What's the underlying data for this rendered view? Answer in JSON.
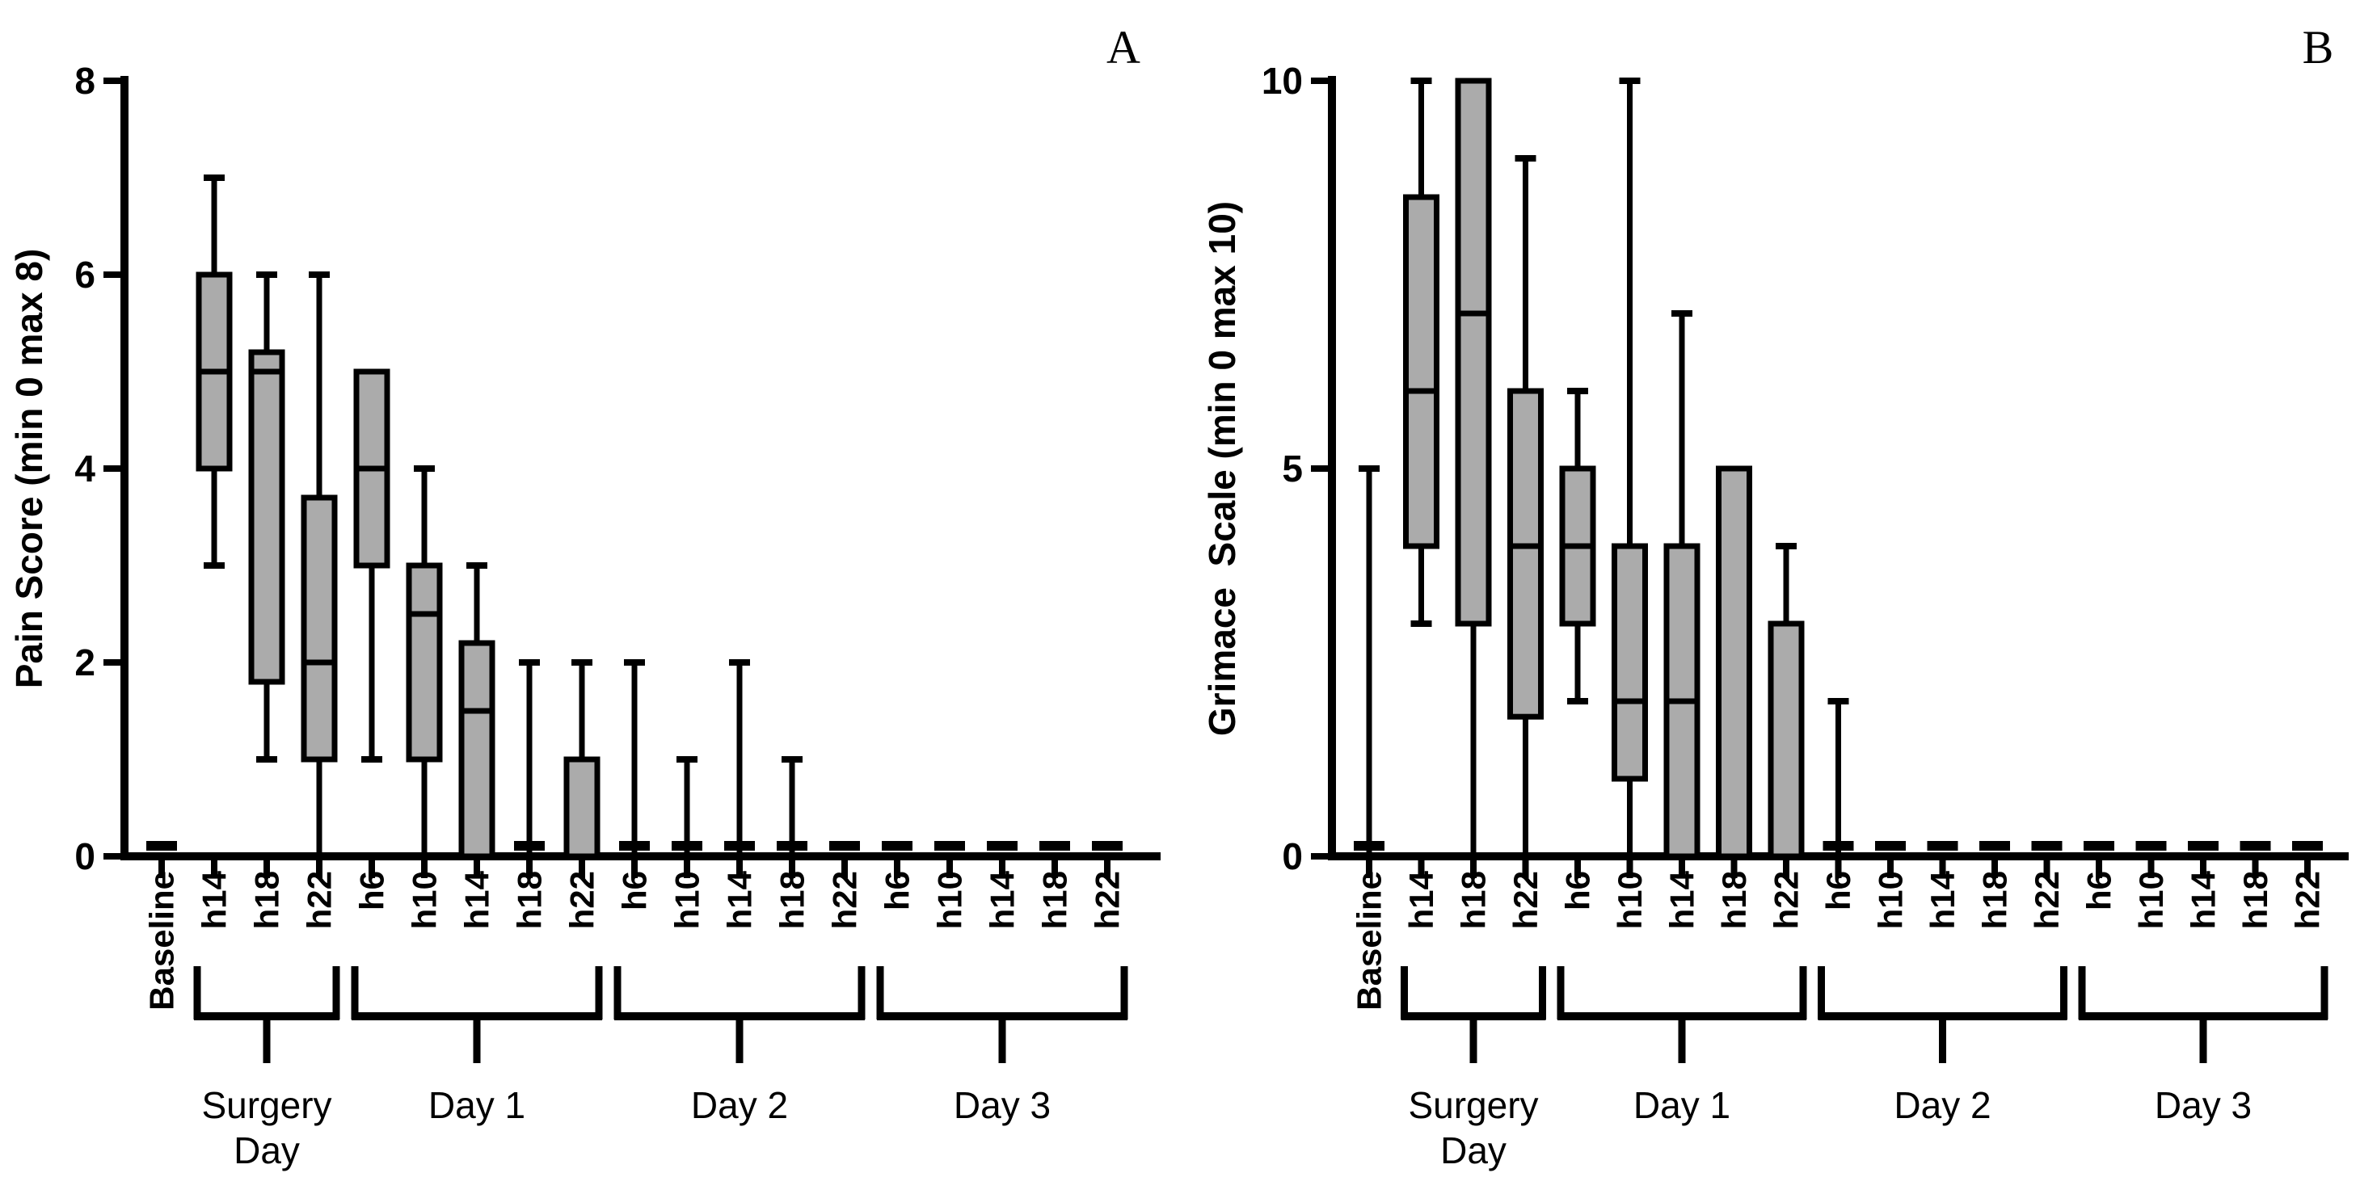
{
  "figure": {
    "background": "#ffffff",
    "line_color": "#000000",
    "box_fill": "#ababab"
  },
  "chart_data": [
    {
      "type": "box",
      "panel_letter": "A",
      "ylabel": "Pain Score (min 0 max 8)",
      "ylim": [
        0,
        8
      ],
      "yticks": [
        0,
        2,
        4,
        6,
        8
      ],
      "grid": false,
      "categories": [
        "Baseline",
        "h14",
        "h18",
        "h22",
        "h6",
        "h10",
        "h14",
        "h18",
        "h22",
        "h6",
        "h10",
        "h14",
        "h18",
        "h22",
        "h6",
        "h10",
        "h14",
        "h18",
        "h22"
      ],
      "groups": [
        {
          "label": "Surgery\nDay",
          "start": 1,
          "end": 3
        },
        {
          "label": "Day 1",
          "start": 4,
          "end": 8
        },
        {
          "label": "Day 2",
          "start": 9,
          "end": 13
        },
        {
          "label": "Day 3",
          "start": 14,
          "end": 18
        }
      ],
      "boxes": [
        {
          "lo": 0,
          "q1": 0,
          "med": 0,
          "q3": 0,
          "hi": 0
        },
        {
          "lo": 3,
          "q1": 4,
          "med": 5,
          "q3": 6,
          "hi": 7
        },
        {
          "lo": 1,
          "q1": 1.8,
          "med": 5,
          "q3": 5.2,
          "hi": 6
        },
        {
          "lo": 0,
          "q1": 1,
          "med": 2,
          "q3": 3.7,
          "hi": 6
        },
        {
          "lo": 1,
          "q1": 3,
          "med": 4,
          "q3": 5,
          "hi": 5
        },
        {
          "lo": 0,
          "q1": 1,
          "med": 2.5,
          "q3": 3,
          "hi": 4
        },
        {
          "lo": 0,
          "q1": 0,
          "med": 1.5,
          "q3": 2.2,
          "hi": 3
        },
        {
          "lo": 0,
          "q1": 0,
          "med": 0,
          "q3": 0,
          "hi": 2
        },
        {
          "lo": 0,
          "q1": 0,
          "med": 0,
          "q3": 1,
          "hi": 2
        },
        {
          "lo": 0,
          "q1": 0,
          "med": 0,
          "q3": 0,
          "hi": 2
        },
        {
          "lo": 0,
          "q1": 0,
          "med": 0,
          "q3": 0,
          "hi": 1
        },
        {
          "lo": 0,
          "q1": 0,
          "med": 0,
          "q3": 0,
          "hi": 2
        },
        {
          "lo": 0,
          "q1": 0,
          "med": 0,
          "q3": 0,
          "hi": 1
        },
        {
          "lo": 0,
          "q1": 0,
          "med": 0,
          "q3": 0,
          "hi": 0
        },
        {
          "lo": 0,
          "q1": 0,
          "med": 0,
          "q3": 0,
          "hi": 0
        },
        {
          "lo": 0,
          "q1": 0,
          "med": 0,
          "q3": 0,
          "hi": 0
        },
        {
          "lo": 0,
          "q1": 0,
          "med": 0,
          "q3": 0,
          "hi": 0
        },
        {
          "lo": 0,
          "q1": 0,
          "med": 0,
          "q3": 0,
          "hi": 0
        },
        {
          "lo": 0,
          "q1": 0,
          "med": 0,
          "q3": 0,
          "hi": 0
        }
      ]
    },
    {
      "type": "box",
      "panel_letter": "B",
      "ylabel": "Grimace  Scale (min 0 max 10)",
      "ylim": [
        0,
        10
      ],
      "yticks": [
        0,
        5,
        10
      ],
      "grid": false,
      "categories": [
        "Baseline",
        "h14",
        "h18",
        "h22",
        "h6",
        "h10",
        "h14",
        "h18",
        "h22",
        "h6",
        "h10",
        "h14",
        "h18",
        "h22",
        "h6",
        "h10",
        "h14",
        "h18",
        "h22"
      ],
      "groups": [
        {
          "label": "Surgery\nDay",
          "start": 1,
          "end": 3
        },
        {
          "label": "Day 1",
          "start": 4,
          "end": 8
        },
        {
          "label": "Day 2",
          "start": 9,
          "end": 13
        },
        {
          "label": "Day 3",
          "start": 14,
          "end": 18
        }
      ],
      "boxes": [
        {
          "lo": 0,
          "q1": 0,
          "med": 0,
          "q3": 0,
          "hi": 5
        },
        {
          "lo": 3,
          "q1": 4,
          "med": 6,
          "q3": 8.5,
          "hi": 10
        },
        {
          "lo": 0,
          "q1": 3,
          "med": 7,
          "q3": 10,
          "hi": 10
        },
        {
          "lo": 0,
          "q1": 1.8,
          "med": 4,
          "q3": 6,
          "hi": 9
        },
        {
          "lo": 2,
          "q1": 3,
          "med": 4,
          "q3": 5,
          "hi": 6
        },
        {
          "lo": 0,
          "q1": 1,
          "med": 2,
          "q3": 4,
          "hi": 10
        },
        {
          "lo": 0,
          "q1": 0,
          "med": 2,
          "q3": 4,
          "hi": 7
        },
        {
          "lo": 0,
          "q1": 0,
          "med": 0,
          "q3": 5,
          "hi": 5
        },
        {
          "lo": 0,
          "q1": 0,
          "med": 0,
          "q3": 3,
          "hi": 4
        },
        {
          "lo": 0,
          "q1": 0,
          "med": 0,
          "q3": 0,
          "hi": 2
        },
        {
          "lo": 0,
          "q1": 0,
          "med": 0,
          "q3": 0,
          "hi": 0
        },
        {
          "lo": 0,
          "q1": 0,
          "med": 0,
          "q3": 0,
          "hi": 0
        },
        {
          "lo": 0,
          "q1": 0,
          "med": 0,
          "q3": 0,
          "hi": 0
        },
        {
          "lo": 0,
          "q1": 0,
          "med": 0,
          "q3": 0,
          "hi": 0
        },
        {
          "lo": 0,
          "q1": 0,
          "med": 0,
          "q3": 0,
          "hi": 0
        },
        {
          "lo": 0,
          "q1": 0,
          "med": 0,
          "q3": 0,
          "hi": 0
        },
        {
          "lo": 0,
          "q1": 0,
          "med": 0,
          "q3": 0,
          "hi": 0
        },
        {
          "lo": 0,
          "q1": 0,
          "med": 0,
          "q3": 0,
          "hi": 0
        },
        {
          "lo": 0,
          "q1": 0,
          "med": 0,
          "q3": 0,
          "hi": 0
        }
      ]
    }
  ]
}
